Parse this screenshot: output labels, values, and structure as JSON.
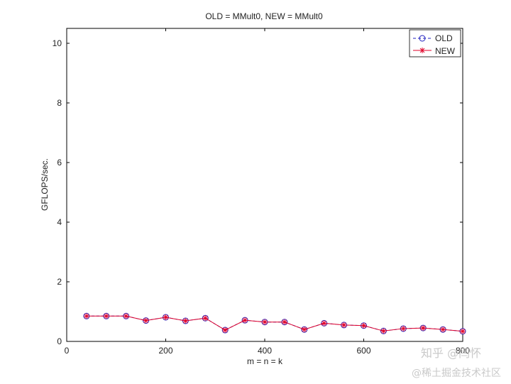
{
  "chart_data": {
    "type": "line",
    "title": "OLD = MMult0, NEW = MMult0",
    "xlabel": "m = n = k",
    "ylabel": "GFLOPS/sec.",
    "xlim": [
      0,
      800
    ],
    "ylim": [
      0,
      10.5
    ],
    "xticks": [
      0,
      200,
      400,
      600,
      800
    ],
    "yticks": [
      0,
      2,
      4,
      6,
      8,
      10
    ],
    "grid": false,
    "legend_position": "top-right",
    "x": [
      40,
      80,
      120,
      160,
      200,
      240,
      280,
      320,
      360,
      400,
      440,
      480,
      520,
      560,
      600,
      640,
      680,
      720,
      760,
      800
    ],
    "series": [
      {
        "name": "OLD",
        "color": "#1f1fbf",
        "marker": "circle",
        "line": "dashed",
        "values": [
          0.85,
          0.85,
          0.85,
          0.7,
          0.81,
          0.69,
          0.78,
          0.38,
          0.71,
          0.65,
          0.65,
          0.4,
          0.61,
          0.55,
          0.53,
          0.35,
          0.43,
          0.45,
          0.4,
          0.34
        ]
      },
      {
        "name": "NEW",
        "color": "#e0002a",
        "marker": "star",
        "line": "solid",
        "values": [
          0.85,
          0.85,
          0.85,
          0.7,
          0.81,
          0.69,
          0.78,
          0.38,
          0.71,
          0.65,
          0.65,
          0.4,
          0.61,
          0.55,
          0.53,
          0.35,
          0.43,
          0.45,
          0.4,
          0.34
        ]
      }
    ]
  },
  "watermark": {
    "line1": "知乎 @闫怀",
    "line2": "@稀土掘金技术社区"
  }
}
